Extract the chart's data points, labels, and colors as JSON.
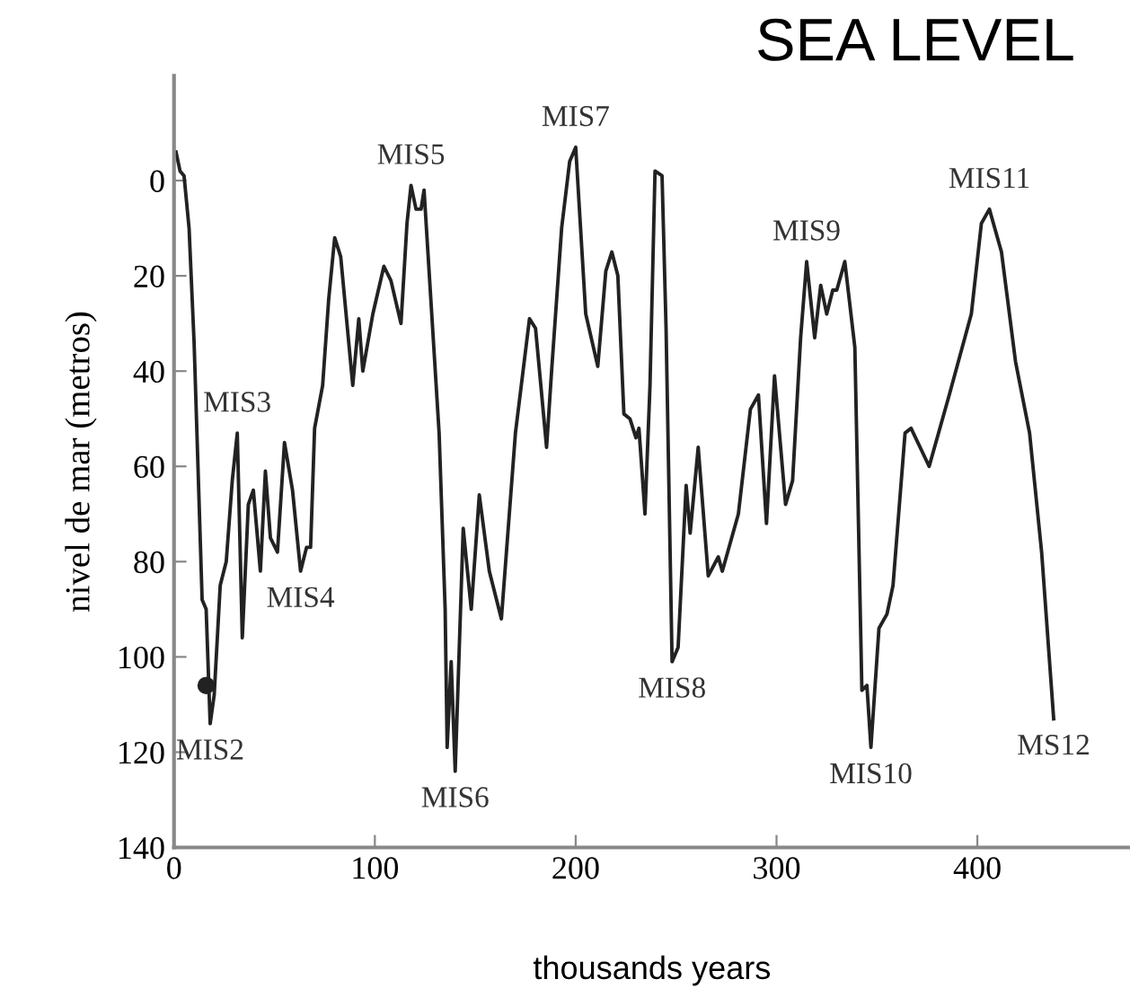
{
  "chart_data": {
    "type": "line",
    "title": "SEA LEVEL",
    "xlabel": "thousands years",
    "ylabel": "nivel de mar (metros)",
    "series": [
      {
        "color": "#222222",
        "x": [
          1,
          3,
          5,
          7.5,
          10,
          14,
          16,
          18,
          20,
          23,
          26,
          29,
          31.5,
          34,
          37,
          39.5,
          43,
          45.5,
          48,
          51.5,
          55,
          59,
          63,
          66,
          68,
          70,
          74,
          77,
          80,
          83,
          89,
          92,
          94,
          99,
          104.5,
          108,
          113,
          116,
          118,
          120.5,
          123,
          124.5,
          132,
          135,
          136,
          138,
          140,
          144,
          148,
          152,
          157,
          163,
          170,
          177,
          180,
          185.5,
          188,
          193,
          197,
          200,
          205,
          211,
          215,
          218,
          221,
          224,
          227,
          230,
          231.5,
          234.5,
          237,
          239.5,
          243,
          245,
          248,
          251,
          255,
          257,
          261,
          266,
          271,
          273,
          281,
          287,
          291,
          295,
          299,
          304.5,
          308,
          312,
          315,
          319,
          322,
          325,
          328,
          330,
          334,
          339,
          342.5,
          345,
          347,
          351,
          355,
          358,
          364,
          367,
          376,
          386,
          397,
          402,
          406,
          412,
          419,
          426,
          432,
          438
        ],
        "values": [
          -6,
          -2,
          -1,
          10,
          34,
          88,
          90,
          114,
          108,
          85,
          80,
          63,
          53,
          96,
          68,
          65,
          82,
          61,
          75,
          78,
          55,
          65,
          82,
          77,
          77,
          52,
          43,
          25,
          12,
          16,
          43,
          29,
          40,
          28,
          18,
          21,
          30,
          9,
          1,
          6,
          6,
          2,
          53,
          90,
          119,
          101,
          124,
          73,
          90,
          66,
          82,
          92,
          53,
          29,
          31,
          56,
          40,
          10,
          -4,
          -7,
          28,
          39,
          19,
          15,
          20,
          49,
          50,
          54,
          52,
          70,
          43,
          -2,
          -1,
          31,
          101,
          98,
          64,
          74,
          56,
          83,
          79,
          82,
          70,
          48,
          45,
          72,
          41,
          68,
          63,
          33,
          17,
          33,
          22,
          28,
          23,
          23,
          17,
          35,
          107,
          106,
          119,
          94,
          91,
          85,
          53,
          52,
          60,
          45,
          28,
          9,
          6,
          15,
          38,
          53,
          78,
          113
        ]
      },
      {
        "type": "scatter",
        "marker": "circle",
        "color": "#222222",
        "x": [
          16
        ],
        "values": [
          106
        ]
      }
    ],
    "annotations": [
      {
        "text": "MIS2",
        "x": 18,
        "y": 114
      },
      {
        "text": "MIS3",
        "x": 31.5,
        "y": 53
      },
      {
        "text": "MIS4",
        "x": 63,
        "y": 82
      },
      {
        "text": "MIS5",
        "x": 118,
        "y": 1
      },
      {
        "text": "MIS6",
        "x": 140,
        "y": 124
      },
      {
        "text": "MIS7",
        "x": 200,
        "y": -7
      },
      {
        "text": "MIS8",
        "x": 248,
        "y": 101
      },
      {
        "text": "MIS9",
        "x": 315,
        "y": 17
      },
      {
        "text": "MIS10",
        "x": 347,
        "y": 119
      },
      {
        "text": "MIS11",
        "x": 406,
        "y": 6
      },
      {
        "text": "MS12",
        "x": 438,
        "y": 113
      }
    ],
    "xlim": [
      0,
      476
    ],
    "ylim": [
      140,
      -22
    ],
    "xticks": [
      0,
      100,
      200,
      300,
      400
    ],
    "yticks": [
      0,
      20,
      40,
      60,
      80,
      100,
      120,
      140
    ],
    "grid": false,
    "legend": false,
    "line_style": "solid"
  }
}
